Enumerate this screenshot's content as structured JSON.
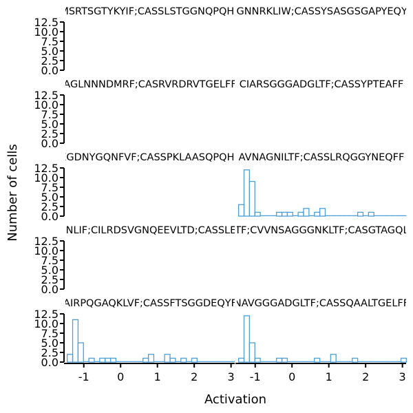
{
  "figure": {
    "xlabel": "Activation",
    "ylabel": "Number of cells"
  },
  "chart_data": {
    "type": "histogram-grid",
    "rows": 5,
    "cols": 2,
    "xlim": [
      -1.5,
      3.1
    ],
    "ylim": [
      0,
      12.5
    ],
    "bin_width": 0.147,
    "x_ticks": [
      -1,
      0,
      1,
      2,
      3
    ],
    "x_tick_labels": [
      "-1",
      "0",
      "1",
      "2",
      "3"
    ],
    "y_ticks": [
      0,
      2.5,
      5,
      7.5,
      10,
      12.5
    ],
    "y_tick_labels": [
      "0.0",
      "2.5",
      "5.0",
      "7.5",
      "10.0",
      "12.5"
    ],
    "bar_color": "#4a9fd8",
    "panels": [
      {
        "title": "MSRTSGTYKYIF;CASSLSTGGNQPQHF",
        "bin_start": -1.5,
        "counts": []
      },
      {
        "title": "AGNNRKLIW;CASSYSASGSGAPYEQYF",
        "bin_start": -1.5,
        "counts": []
      },
      {
        "title": "AGLNNNDMRF;CASRVRDRVTGELFF",
        "bin_start": -1.5,
        "counts": []
      },
      {
        "title": "CIARSGGGADGLTF;CASSYPTEAFF",
        "bin_start": -1.5,
        "counts": []
      },
      {
        "title": "EGDNYGQNFVF;CASSPKLAASQPQHF",
        "bin_start": -1.5,
        "counts": []
      },
      {
        "title": "AVNAGNILTF;CASSLRQGGYNEQFF",
        "bin_start": -1.45,
        "counts": [
          3,
          12,
          9,
          1,
          0,
          0,
          0,
          1,
          1,
          1,
          0,
          1,
          2,
          0,
          1,
          2,
          0,
          0,
          0,
          0,
          0,
          0,
          1,
          0,
          1,
          0,
          0,
          0,
          0,
          0,
          0
        ]
      },
      {
        "title": "GNLIF;CILRDSVGNQEEVLTD;CASSLEF",
        "bin_start": -1.5,
        "counts": []
      },
      {
        "title": "ALTF;CVVNSAGGGNKLTF;CASGTAGQLYF",
        "bin_start": -1.5,
        "counts": []
      },
      {
        "title": "AIRPQGAQKLVF;CASSFTSGGDEQYF",
        "bin_start": -1.45,
        "counts": [
          2,
          11,
          5,
          0,
          1,
          0,
          1,
          1,
          1,
          0,
          0,
          0,
          0,
          0,
          1,
          2,
          0,
          0,
          2,
          1,
          0,
          1,
          0,
          1,
          0,
          0,
          0,
          0,
          0,
          0,
          0
        ]
      },
      {
        "title": "NAVGGGADGLTF;CASSQAALTGELFF",
        "bin_start": -1.45,
        "counts": [
          1,
          12,
          5,
          1,
          0,
          0,
          0,
          1,
          1,
          0,
          0,
          0,
          0,
          0,
          1,
          0,
          0,
          2,
          0,
          0,
          0,
          1,
          0,
          0,
          0,
          0,
          0,
          0,
          0,
          0,
          1
        ]
      }
    ]
  }
}
